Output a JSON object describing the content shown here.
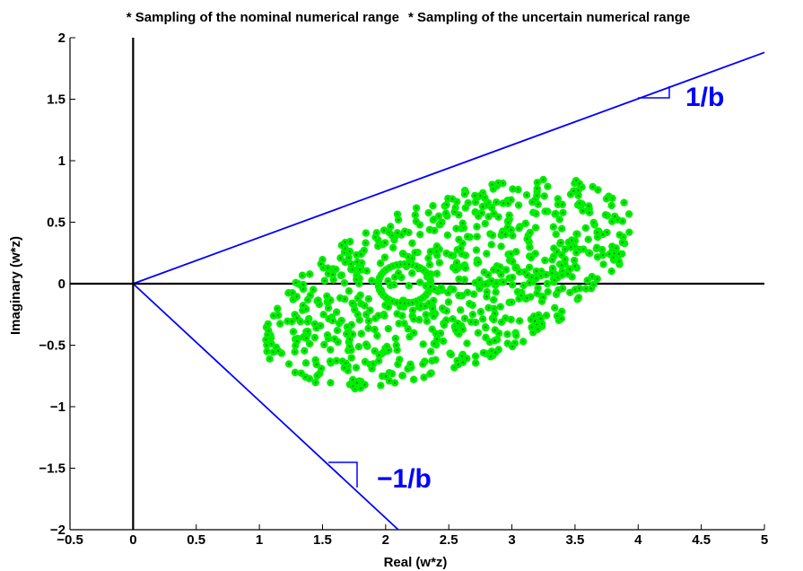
{
  "chart_data": {
    "type": "scatter",
    "title": "",
    "xlabel": "Real (w*z)",
    "ylabel": "Imaginary (w*z)",
    "xlim": [
      -0.5,
      5
    ],
    "ylim": [
      -2,
      2
    ],
    "x_ticks": [
      -0.5,
      0,
      0.5,
      1,
      1.5,
      2,
      2.5,
      3,
      3.5,
      4,
      4.5,
      5
    ],
    "x_tick_labels": [
      "−0.5",
      "0",
      "0.5",
      "1",
      "1.5",
      "2",
      "2.5",
      "3",
      "3.5",
      "4",
      "4.5",
      "5"
    ],
    "y_ticks": [
      -2,
      -1.5,
      -1,
      -0.5,
      0,
      0.5,
      1,
      1.5,
      2
    ],
    "y_tick_labels": [
      "−2",
      "−1.5",
      "−1",
      "−0.5",
      "0",
      "0.5",
      "1",
      "1.5",
      "2"
    ],
    "grid": false,
    "legend": [
      {
        "name": "* Sampling of the nominal numerical range",
        "color": "#ff0000"
      },
      {
        "name": "* Sampling of the uncertain numerical range",
        "color": "#00dd00"
      }
    ],
    "legend_placement": "top",
    "series": [
      {
        "color": "#00ee00",
        "marker": "*",
        "region": {
          "shape": "ellipse",
          "center": [
            2.5,
            0.0
          ],
          "semi_axes": [
            1.55,
            0.68
          ],
          "rotation_deg": 22,
          "inner_ring_center": [
            2.15,
            0.0
          ],
          "inner_ring_radius": 0.16
        },
        "approx_points": 780
      }
    ],
    "lines": [
      {
        "name": "slope-upper",
        "color": "#0000ff",
        "from": [
          0,
          0
        ],
        "to": [
          5,
          1.88
        ]
      },
      {
        "name": "slope-lower",
        "color": "#0000ff",
        "from": [
          0,
          0
        ],
        "to": [
          2.1,
          -2
        ]
      },
      {
        "name": "zero-x",
        "color": "#000000",
        "from": [
          -0.5,
          0
        ],
        "to": [
          5,
          0
        ]
      },
      {
        "name": "zero-y",
        "color": "#000000",
        "from": [
          0,
          -2
        ],
        "to": [
          0,
          2
        ]
      }
    ],
    "annotations": [
      {
        "text": "1/b",
        "color": "#0000ff",
        "at": [
          4.4,
          1.52
        ]
      },
      {
        "text": "−1/b",
        "color": "#0000ff",
        "at": [
          2.0,
          -1.55
        ]
      }
    ]
  }
}
